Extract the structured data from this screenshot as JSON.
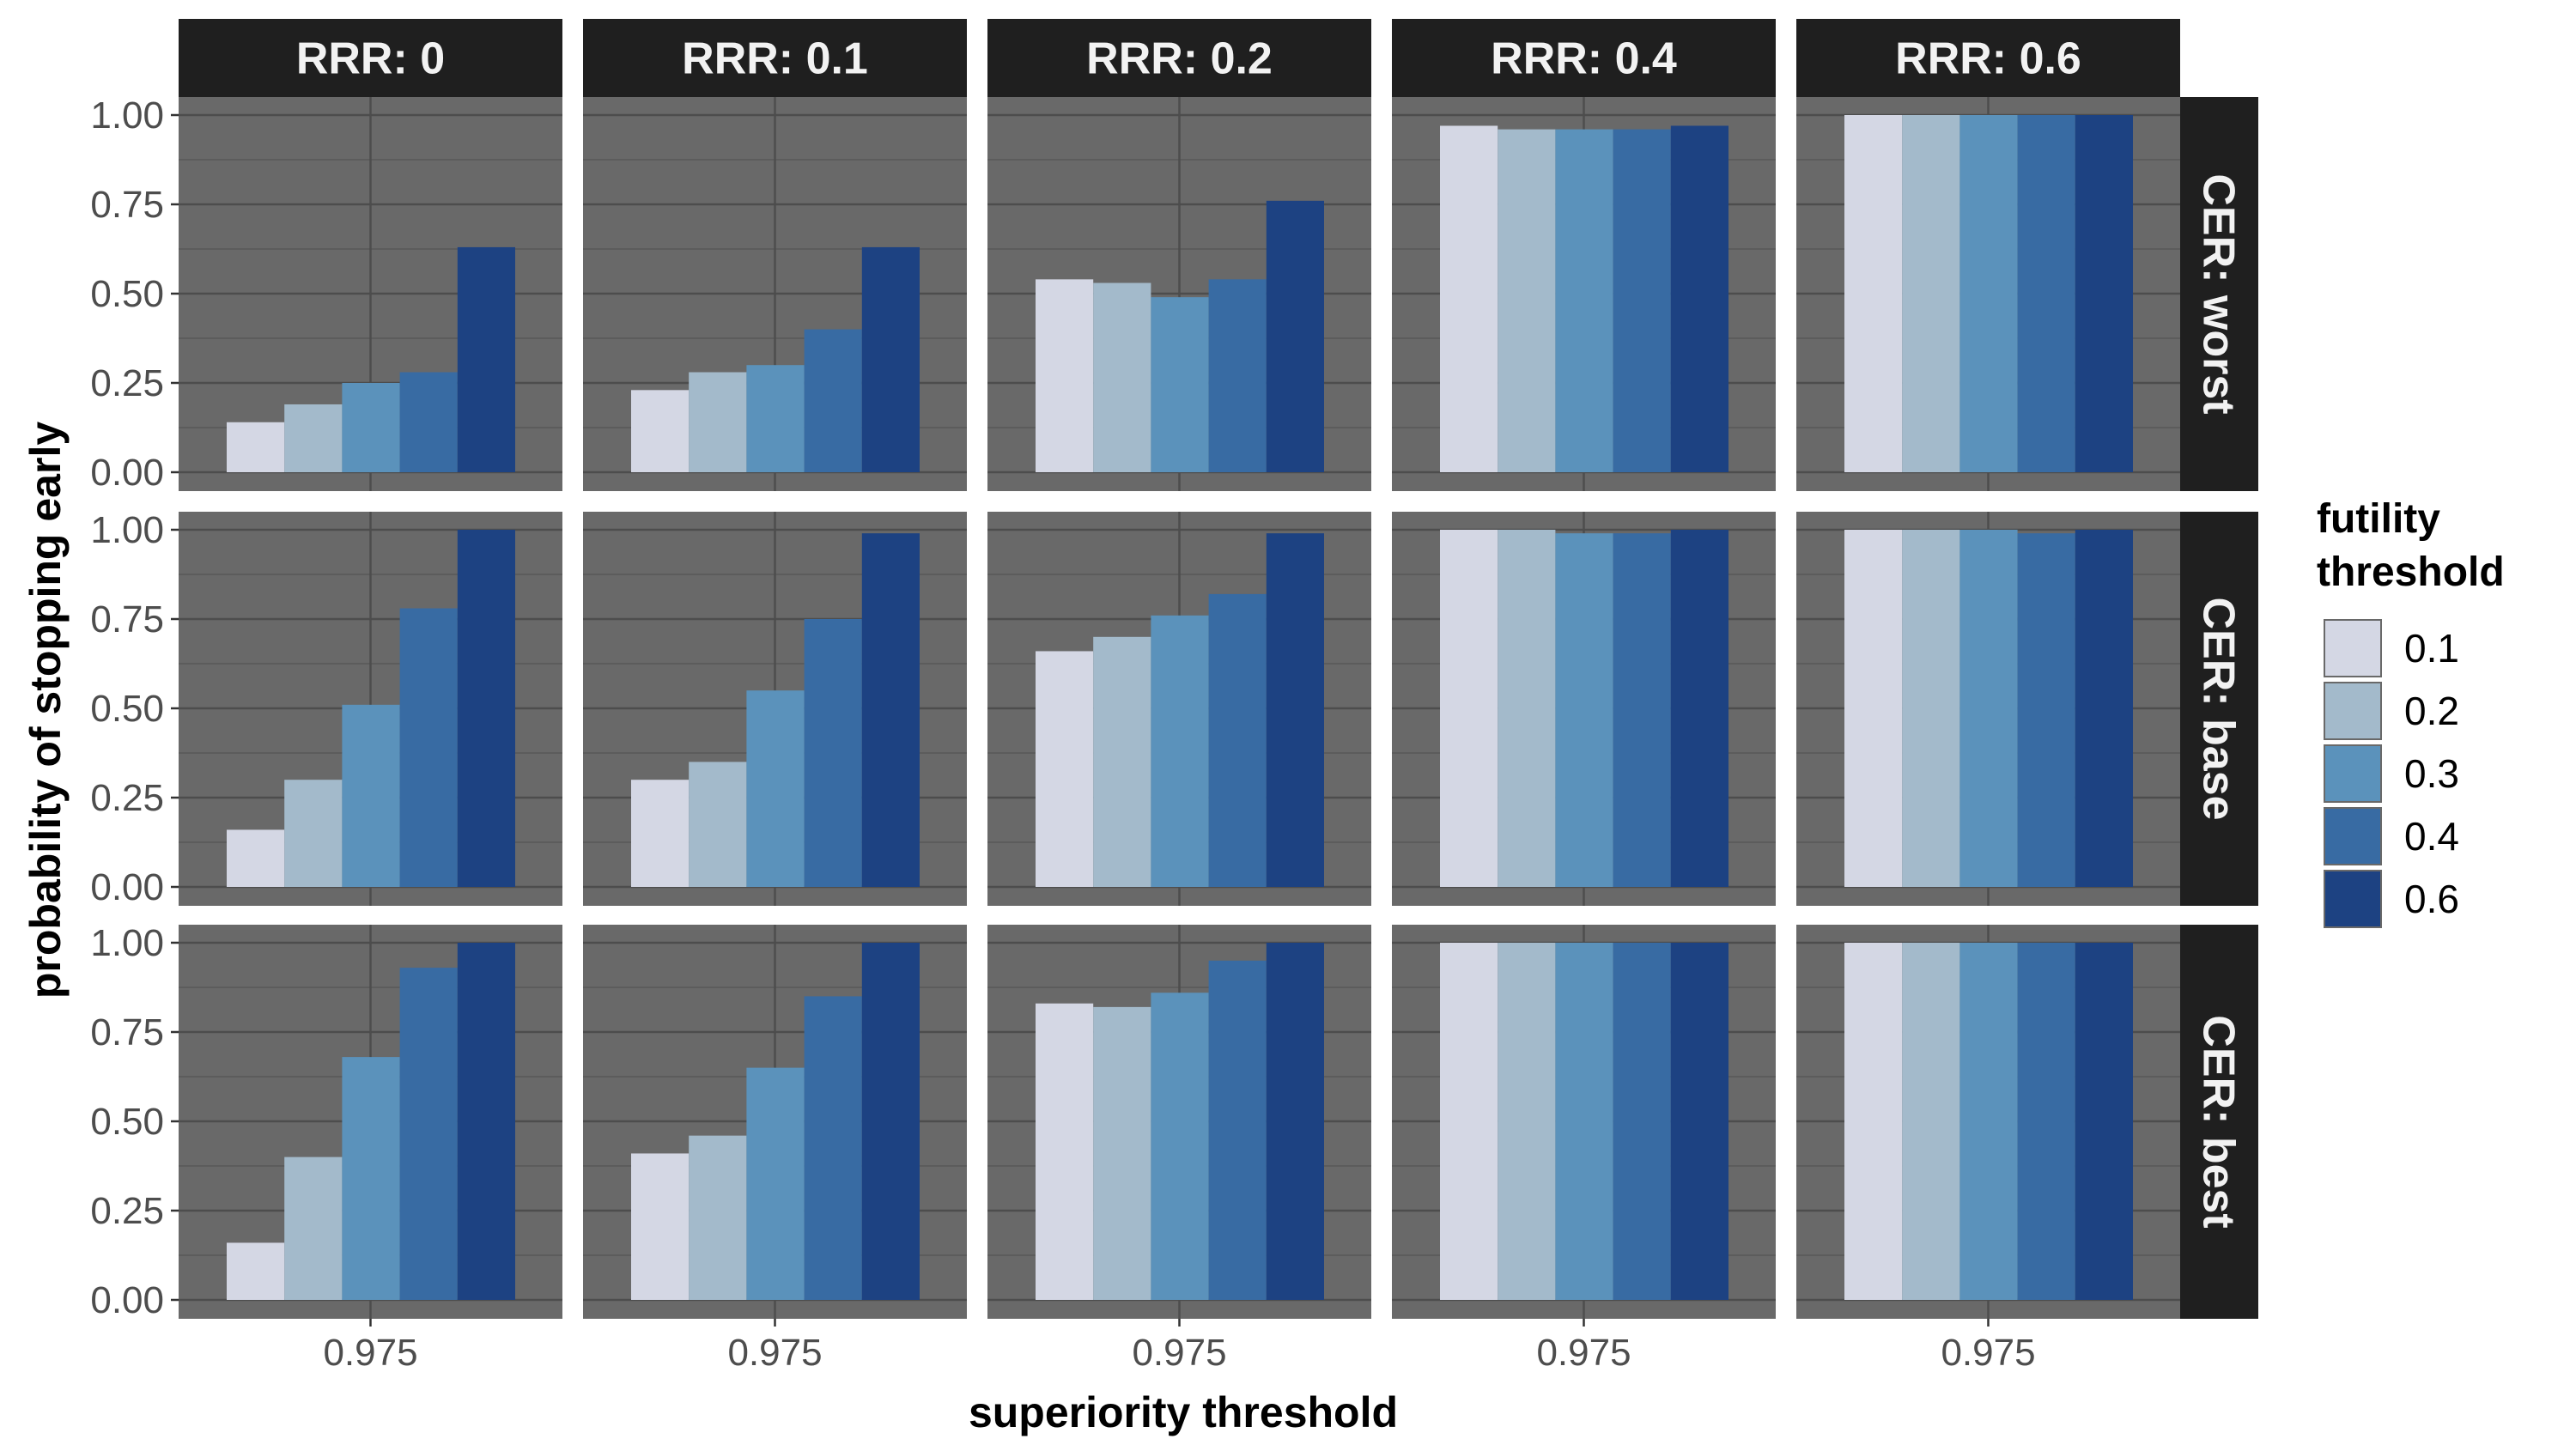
{
  "chart_data": {
    "type": "bar",
    "layout": "facet_grid",
    "xlabel": "superiority threshold",
    "ylabel": "probability of stopping early",
    "x_category": "0.975",
    "ylim": [
      0,
      1.0
    ],
    "yticks": [
      "0.00",
      "0.25",
      "0.50",
      "0.75",
      "1.00"
    ],
    "column_facets": [
      "RRR: 0",
      "RRR: 0.1",
      "RRR: 0.2",
      "RRR: 0.4",
      "RRR: 0.6"
    ],
    "row_facets": [
      "CER: worst",
      "CER: base",
      "CER: best"
    ],
    "legend": {
      "title_lines": [
        "futility",
        "threshold"
      ],
      "position": "right",
      "entries": [
        "0.1",
        "0.2",
        "0.3",
        "0.4",
        "0.6"
      ],
      "colors": [
        "#d4d7e4",
        "#a3bacb",
        "#5b92bb",
        "#386ba3",
        "#1d4282"
      ]
    },
    "background": "#696969",
    "grid": true,
    "strip_color": "#1f1f1f",
    "values": [
      [
        [
          0.14,
          0.19,
          0.25,
          0.28,
          0.63
        ],
        [
          0.23,
          0.28,
          0.3,
          0.4,
          0.63
        ],
        [
          0.54,
          0.53,
          0.49,
          0.54,
          0.76
        ],
        [
          0.97,
          0.96,
          0.96,
          0.96,
          0.97
        ],
        [
          1.0,
          1.0,
          1.0,
          1.0,
          1.0
        ]
      ],
      [
        [
          0.16,
          0.3,
          0.51,
          0.78,
          1.0
        ],
        [
          0.3,
          0.35,
          0.55,
          0.75,
          0.99
        ],
        [
          0.66,
          0.7,
          0.76,
          0.82,
          0.99
        ],
        [
          1.0,
          1.0,
          0.99,
          0.99,
          1.0
        ],
        [
          1.0,
          1.0,
          1.0,
          0.99,
          1.0
        ]
      ],
      [
        [
          0.16,
          0.4,
          0.68,
          0.93,
          1.0
        ],
        [
          0.41,
          0.46,
          0.65,
          0.85,
          1.0
        ],
        [
          0.83,
          0.82,
          0.86,
          0.95,
          1.0
        ],
        [
          1.0,
          1.0,
          1.0,
          1.0,
          1.0
        ],
        [
          1.0,
          1.0,
          1.0,
          1.0,
          1.0
        ]
      ]
    ]
  }
}
